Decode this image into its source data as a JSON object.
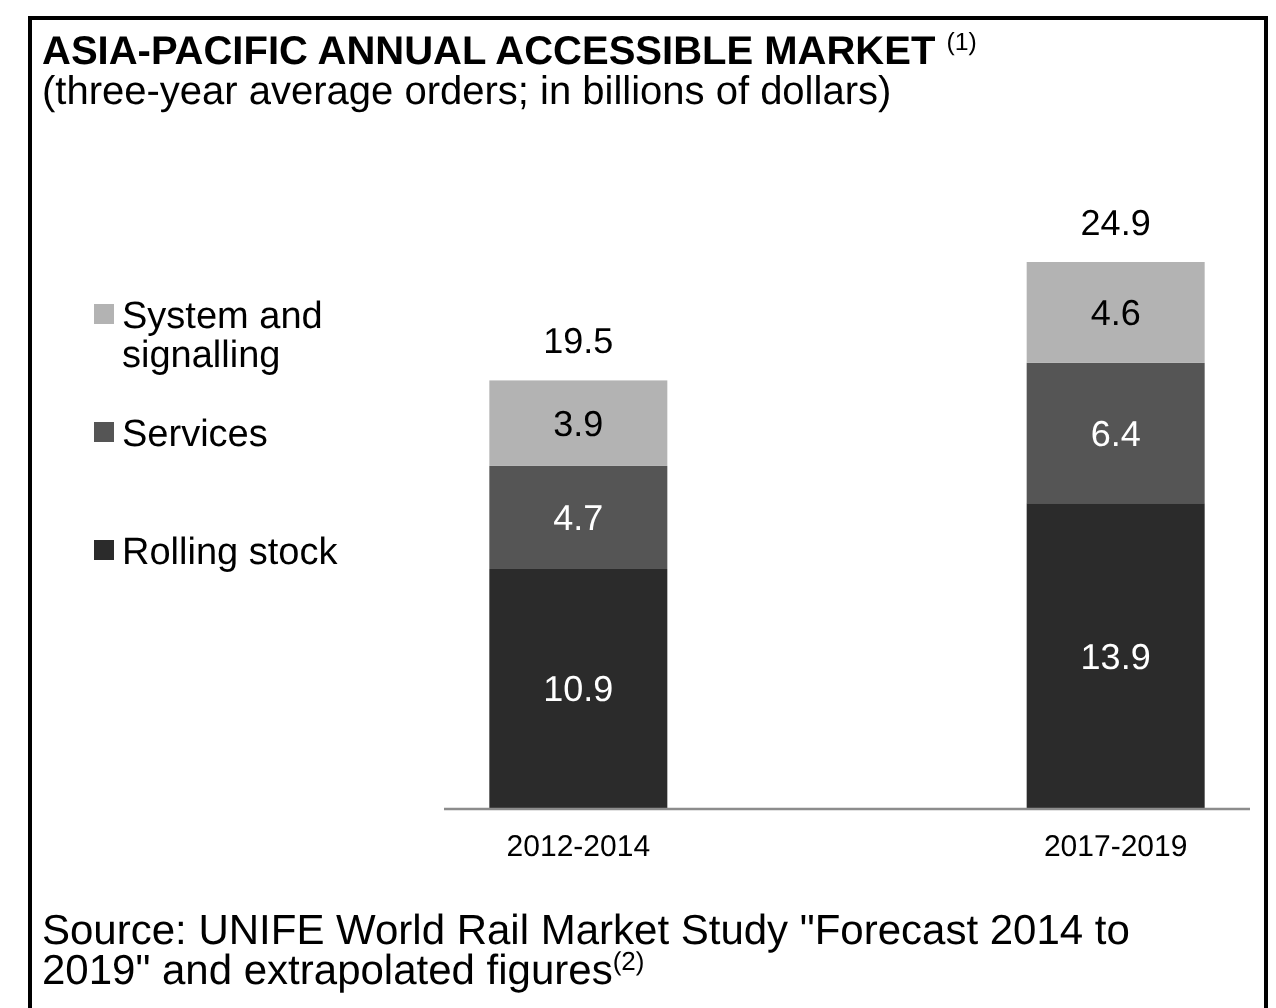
{
  "chart_data": {
    "type": "bar",
    "title": "ASIA-PACIFIC ANNUAL ACCESSIBLE MARKET $^{(1)}$",
    "subtitle": "(three-year average orders; in billions of dollars)",
    "categories": [
      "2012-2014",
      "2017-2019"
    ],
    "series": [
      {
        "name": "Rolling stock",
        "color": "#2b2b2b",
        "values": [
          10.9,
          13.9
        ]
      },
      {
        "name": "Services",
        "color": "#555555",
        "values": [
          4.7,
          6.4
        ]
      },
      {
        "name": "System and signalling",
        "color": "#b3b3b3",
        "values": [
          3.9,
          4.6
        ]
      }
    ],
    "stacked": true,
    "data_labels": true,
    "totals": [
      "19.5",
      "24.9"
    ],
    "legend": "left",
    "annotations": [
      "Source: UNIFE World Rail Market Study \"Forecast 2014 to 2019\" and extrapolated figures$^{(2)}$"
    ]
  }
}
